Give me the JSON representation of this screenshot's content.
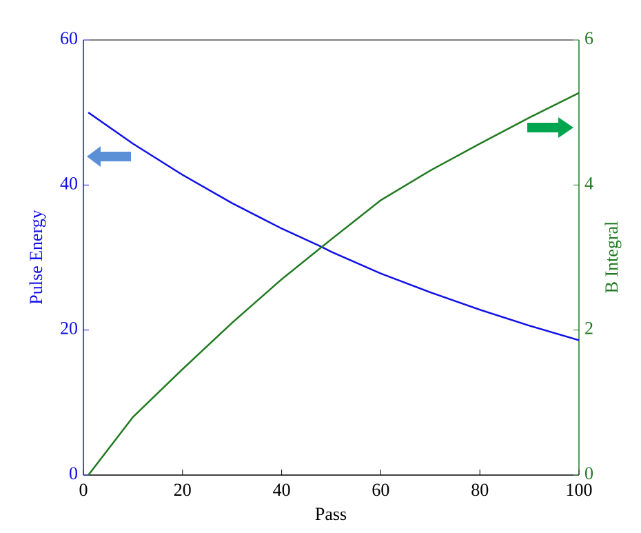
{
  "chart_data": {
    "type": "line",
    "x": [
      1,
      10,
      20,
      30,
      40,
      48,
      50,
      60,
      70,
      80,
      90,
      100
    ],
    "series": [
      {
        "name": "Pulse Energy",
        "color": "#1010e8",
        "values": [
          50,
          45.7,
          41.4,
          37.5,
          34,
          31.5,
          30.8,
          27.8,
          25.2,
          22.8,
          20.6,
          18.6
        ]
      },
      {
        "name": "B Integral",
        "color": "#217a21",
        "axis": "y2",
        "values": [
          0,
          0.8,
          1.46,
          2.1,
          2.7,
          3.14,
          3.25,
          3.79,
          4.2,
          4.57,
          4.93,
          5.27
        ]
      }
    ],
    "xlabel": "Pass",
    "ylabel": "Pulse Energy",
    "y2label": "B Integral",
    "xlim": [
      0,
      100
    ],
    "xticks": [
      0,
      20,
      40,
      60,
      80,
      100
    ],
    "ylim": [
      0,
      60
    ],
    "yticks": [
      0,
      20,
      40,
      60
    ],
    "y2lim": [
      0,
      6
    ],
    "y2ticks": [
      0,
      2,
      4,
      6
    ]
  }
}
